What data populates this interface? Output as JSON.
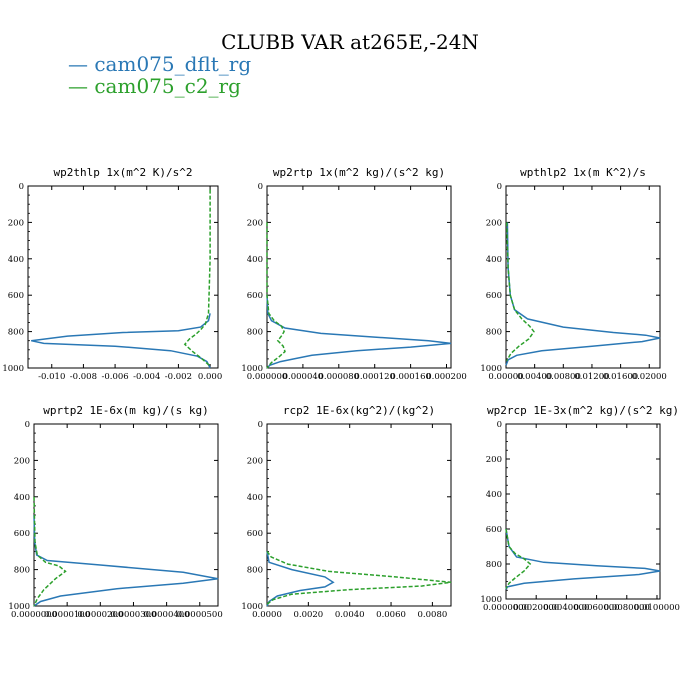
{
  "title": "CLUBB VAR at265E,-24N",
  "legend": [
    {
      "label": "cam075_dflt_rg",
      "color": "#2a78b5"
    },
    {
      "label": "cam075_c2_rg",
      "color": "#2ca02c"
    }
  ],
  "chart_data": [
    {
      "type": "line",
      "title": "wp2thlp  1x(m^2 K)/s^2",
      "xlim": [
        -0.0115,
        0.0005
      ],
      "ylim": [
        1000,
        0
      ],
      "xticks": [
        "-0.010",
        "-0.008",
        "-0.006",
        "-0.004",
        "-0.002",
        "0.000"
      ],
      "xtick_values": [
        -0.01,
        -0.008,
        -0.006,
        -0.004,
        -0.002,
        0.0
      ],
      "yticks": [
        "0",
        "200",
        "400",
        "600",
        "800",
        "1000"
      ],
      "series": [
        {
          "name": "cam075_dflt_rg",
          "x": [
            0.0,
            -0.0001,
            -0.0006,
            -0.002,
            -0.0055,
            -0.009,
            -0.0113,
            -0.0105,
            -0.006,
            -0.0025,
            -0.0008,
            -0.0002,
            0.0
          ],
          "y": [
            700,
            740,
            775,
            795,
            805,
            825,
            850,
            865,
            880,
            905,
            935,
            965,
            1000
          ]
        },
        {
          "name": "cam075_c2_rg",
          "x": [
            0.0,
            0.0,
            -0.0001,
            -0.0003,
            -0.0006,
            -0.0009,
            -0.0013,
            -0.0016,
            -0.0011,
            -0.0005,
            0.0
          ],
          "y": [
            20,
            400,
            700,
            760,
            790,
            815,
            840,
            870,
            910,
            950,
            990
          ]
        }
      ]
    },
    {
      "type": "line",
      "title": "wp2rtp  1x(m^2 kg)/(s^2 kg)",
      "xlim": [
        0.0,
        0.000205
      ],
      "ylim": [
        1000,
        0
      ],
      "xticks": [
        "0.000000",
        "0.000040",
        "0.000080",
        "0.000120",
        "0.000160",
        "0.000200"
      ],
      "xtick_values": [
        0.0,
        4e-05,
        8e-05,
        0.00012,
        0.00016,
        0.0002
      ],
      "yticks": [
        "0",
        "200",
        "400",
        "600",
        "800",
        "1000"
      ],
      "series": [
        {
          "name": "cam075_dflt_rg",
          "x": [
            0.0,
            1e-06,
            5e-06,
            2e-05,
            6e-05,
            0.00012,
            0.00018,
            0.000205,
            0.00016,
            0.0001,
            5e-05,
            3e-05,
            1.5e-05,
            3e-06,
            0.0
          ],
          "y": [
            600,
            700,
            740,
            780,
            810,
            830,
            850,
            865,
            885,
            905,
            930,
            950,
            965,
            985,
            1000
          ]
        },
        {
          "name": "cam075_c2_rg",
          "x": [
            0.0,
            0.0,
            2e-06,
            8e-06,
            1.6e-05,
            1.9e-05,
            1.6e-05,
            1.2e-05,
            1.8e-05,
            2e-05,
            1.3e-05,
            5e-06,
            0.0
          ],
          "y": [
            200,
            600,
            700,
            740,
            770,
            800,
            825,
            850,
            880,
            910,
            940,
            970,
            1000
          ]
        }
      ]
    },
    {
      "type": "line",
      "title": "wpthlp2  1x(m K^2)/s",
      "xlim": [
        0.0,
        0.0215
      ],
      "ylim": [
        1000,
        0
      ],
      "xticks": [
        "0.00000",
        "0.00400",
        "0.00800",
        "0.01200",
        "0.01600",
        "0.02000"
      ],
      "xtick_values": [
        0.0,
        0.004,
        0.008,
        0.012,
        0.016,
        0.02
      ],
      "yticks": [
        "0",
        "200",
        "400",
        "600",
        "800",
        "1000"
      ],
      "series": [
        {
          "name": "cam075_dflt_rg",
          "x": [
            0.0002,
            0.0003,
            0.0006,
            0.0012,
            0.003,
            0.008,
            0.015,
            0.0195,
            0.0215,
            0.019,
            0.012,
            0.005,
            0.0015,
            0.0003,
            0.0
          ],
          "y": [
            200,
            450,
            600,
            680,
            730,
            775,
            805,
            820,
            835,
            855,
            880,
            905,
            930,
            955,
            985
          ]
        },
        {
          "name": "cam075_c2_rg",
          "x": [
            0.0001,
            0.0003,
            0.0006,
            0.0012,
            0.0022,
            0.0033,
            0.0039,
            0.0032,
            0.0018,
            0.0007,
            0.0001
          ],
          "y": [
            200,
            450,
            600,
            680,
            730,
            770,
            800,
            840,
            880,
            920,
            960
          ]
        }
      ]
    },
    {
      "type": "line",
      "title": "wprtp2  1E-6x(m kg)/(s kg)",
      "xlim": [
        0.0,
        5.55e-05
      ],
      "ylim": [
        1000,
        0
      ],
      "xticks": [
        "0.0000000",
        "0.0000100",
        "0.0000200",
        "0.0000300",
        "0.0000400",
        "0.0000500"
      ],
      "xtick_values": [
        0.0,
        1e-05,
        2e-05,
        3e-05,
        4e-05,
        5e-05
      ],
      "yticks": [
        "0",
        "200",
        "400",
        "600",
        "800",
        "1000"
      ],
      "series": [
        {
          "name": "cam075_dflt_rg",
          "x": [
            0.0,
            2e-07,
            8e-07,
            4e-06,
            2e-05,
            4.5e-05,
            5.55e-05,
            4.5e-05,
            2.5e-05,
            8e-06,
            2e-06,
            0.0
          ],
          "y": [
            500,
            650,
            720,
            750,
            775,
            815,
            850,
            875,
            905,
            945,
            975,
            1000
          ]
        },
        {
          "name": "cam075_c2_rg",
          "x": [
            0.0,
            3e-07,
            1e-06,
            3.5e-06,
            7.5e-06,
            9.5e-06,
            6.5e-06,
            3e-06,
            1e-06,
            0.0
          ],
          "y": [
            400,
            650,
            720,
            760,
            780,
            810,
            850,
            910,
            960,
            1000
          ]
        }
      ]
    },
    {
      "type": "line",
      "title": "rcp2  1E-6x(kg^2)/(kg^2)",
      "xlim": [
        0.0,
        0.0089
      ],
      "ylim": [
        1000,
        0
      ],
      "xticks": [
        "0.0000",
        "0.0020",
        "0.0040",
        "0.0060",
        "0.0080"
      ],
      "xtick_values": [
        0.0,
        0.002,
        0.004,
        0.006,
        0.008
      ],
      "yticks": [
        "0",
        "200",
        "400",
        "600",
        "800",
        "1000"
      ],
      "series": [
        {
          "name": "cam075_dflt_rg",
          "x": [
            0.0,
            0.0001,
            0.0012,
            0.0028,
            0.0032,
            0.0028,
            0.0016,
            0.0005,
            0.0001,
            0.0
          ],
          "y": [
            700,
            760,
            800,
            840,
            870,
            895,
            915,
            945,
            975,
            1000
          ]
        },
        {
          "name": "cam075_c2_rg",
          "x": [
            0.0,
            0.0002,
            0.001,
            0.003,
            0.0062,
            0.0089,
            0.0075,
            0.004,
            0.0012,
            0.0003,
            0.0
          ],
          "y": [
            700,
            730,
            770,
            810,
            840,
            870,
            890,
            910,
            935,
            965,
            990
          ]
        }
      ]
    },
    {
      "type": "line",
      "title": "wp2rcp  1E-3x(m^2 kg)/(s^2 kg)",
      "xlim": [
        0.0,
        0.0102
      ],
      "ylim": [
        1000,
        0
      ],
      "xticks": [
        "0.0000000",
        "0.0020000",
        "0.0040000",
        "0.0060000",
        "0.0080000",
        "0.0100000"
      ],
      "xtick_values": [
        0.0,
        0.002,
        0.004,
        0.006,
        0.008,
        0.01
      ],
      "yticks": [
        "0",
        "200",
        "400",
        "600",
        "800",
        "1000"
      ],
      "series": [
        {
          "name": "cam075_dflt_rg",
          "x": [
            0.0,
            0.0002,
            0.0007,
            0.0025,
            0.006,
            0.0092,
            0.0102,
            0.0088,
            0.0045,
            0.0012,
            0.0001,
            0.0
          ],
          "y": [
            600,
            700,
            760,
            790,
            810,
            825,
            840,
            860,
            885,
            910,
            930,
            945
          ]
        },
        {
          "name": "cam075_c2_rg",
          "x": [
            0.0,
            0.0002,
            0.0006,
            0.0012,
            0.0016,
            0.0012,
            0.0006,
            0.0002,
            0.0
          ],
          "y": [
            600,
            700,
            740,
            770,
            800,
            840,
            880,
            910,
            940
          ]
        }
      ]
    }
  ]
}
